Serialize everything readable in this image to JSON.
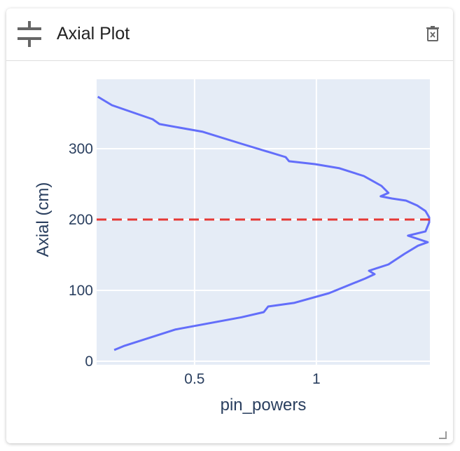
{
  "header": {
    "title": "Axial Plot"
  },
  "chart_data": {
    "type": "line",
    "x_label": "pin_powers",
    "y_label": "Axial (cm)",
    "x": [
      0.17,
      0.213,
      0.42,
      0.693,
      0.784,
      0.802,
      0.908,
      1.052,
      1.201,
      1.239,
      1.216,
      1.296,
      1.362,
      1.417,
      1.457,
      1.376,
      1.448,
      1.463,
      1.463,
      1.448,
      1.414,
      1.368,
      1.31,
      1.264,
      1.296,
      1.267,
      1.195,
      1.095,
      0.994,
      0.888,
      0.874,
      0.693,
      0.534,
      0.356,
      0.328,
      0.161,
      0.103
    ],
    "y": [
      15.8,
      21.8,
      44.6,
      62.0,
      69.3,
      77.2,
      82.2,
      96.0,
      116.8,
      122.8,
      127.7,
      136.6,
      151.5,
      163.0,
      168.0,
      177.2,
      183.2,
      196.0,
      203.0,
      211.9,
      219.8,
      226.7,
      229.7,
      232.7,
      237.6,
      247.5,
      261.4,
      272.3,
      278.2,
      282.2,
      288.1,
      306.9,
      323.8,
      334.7,
      341.6,
      361.4,
      373.3
    ],
    "color": "#636efa",
    "hline": {
      "y": 200,
      "color": "#e53935"
    },
    "xlim": [
      0.098,
      1.466
    ],
    "ylim": [
      -5,
      398
    ],
    "xticks": [
      0.5,
      1
    ],
    "yticks": [
      0,
      100,
      200,
      300
    ],
    "grid": true,
    "plot_bg": "#e5ecf6"
  }
}
